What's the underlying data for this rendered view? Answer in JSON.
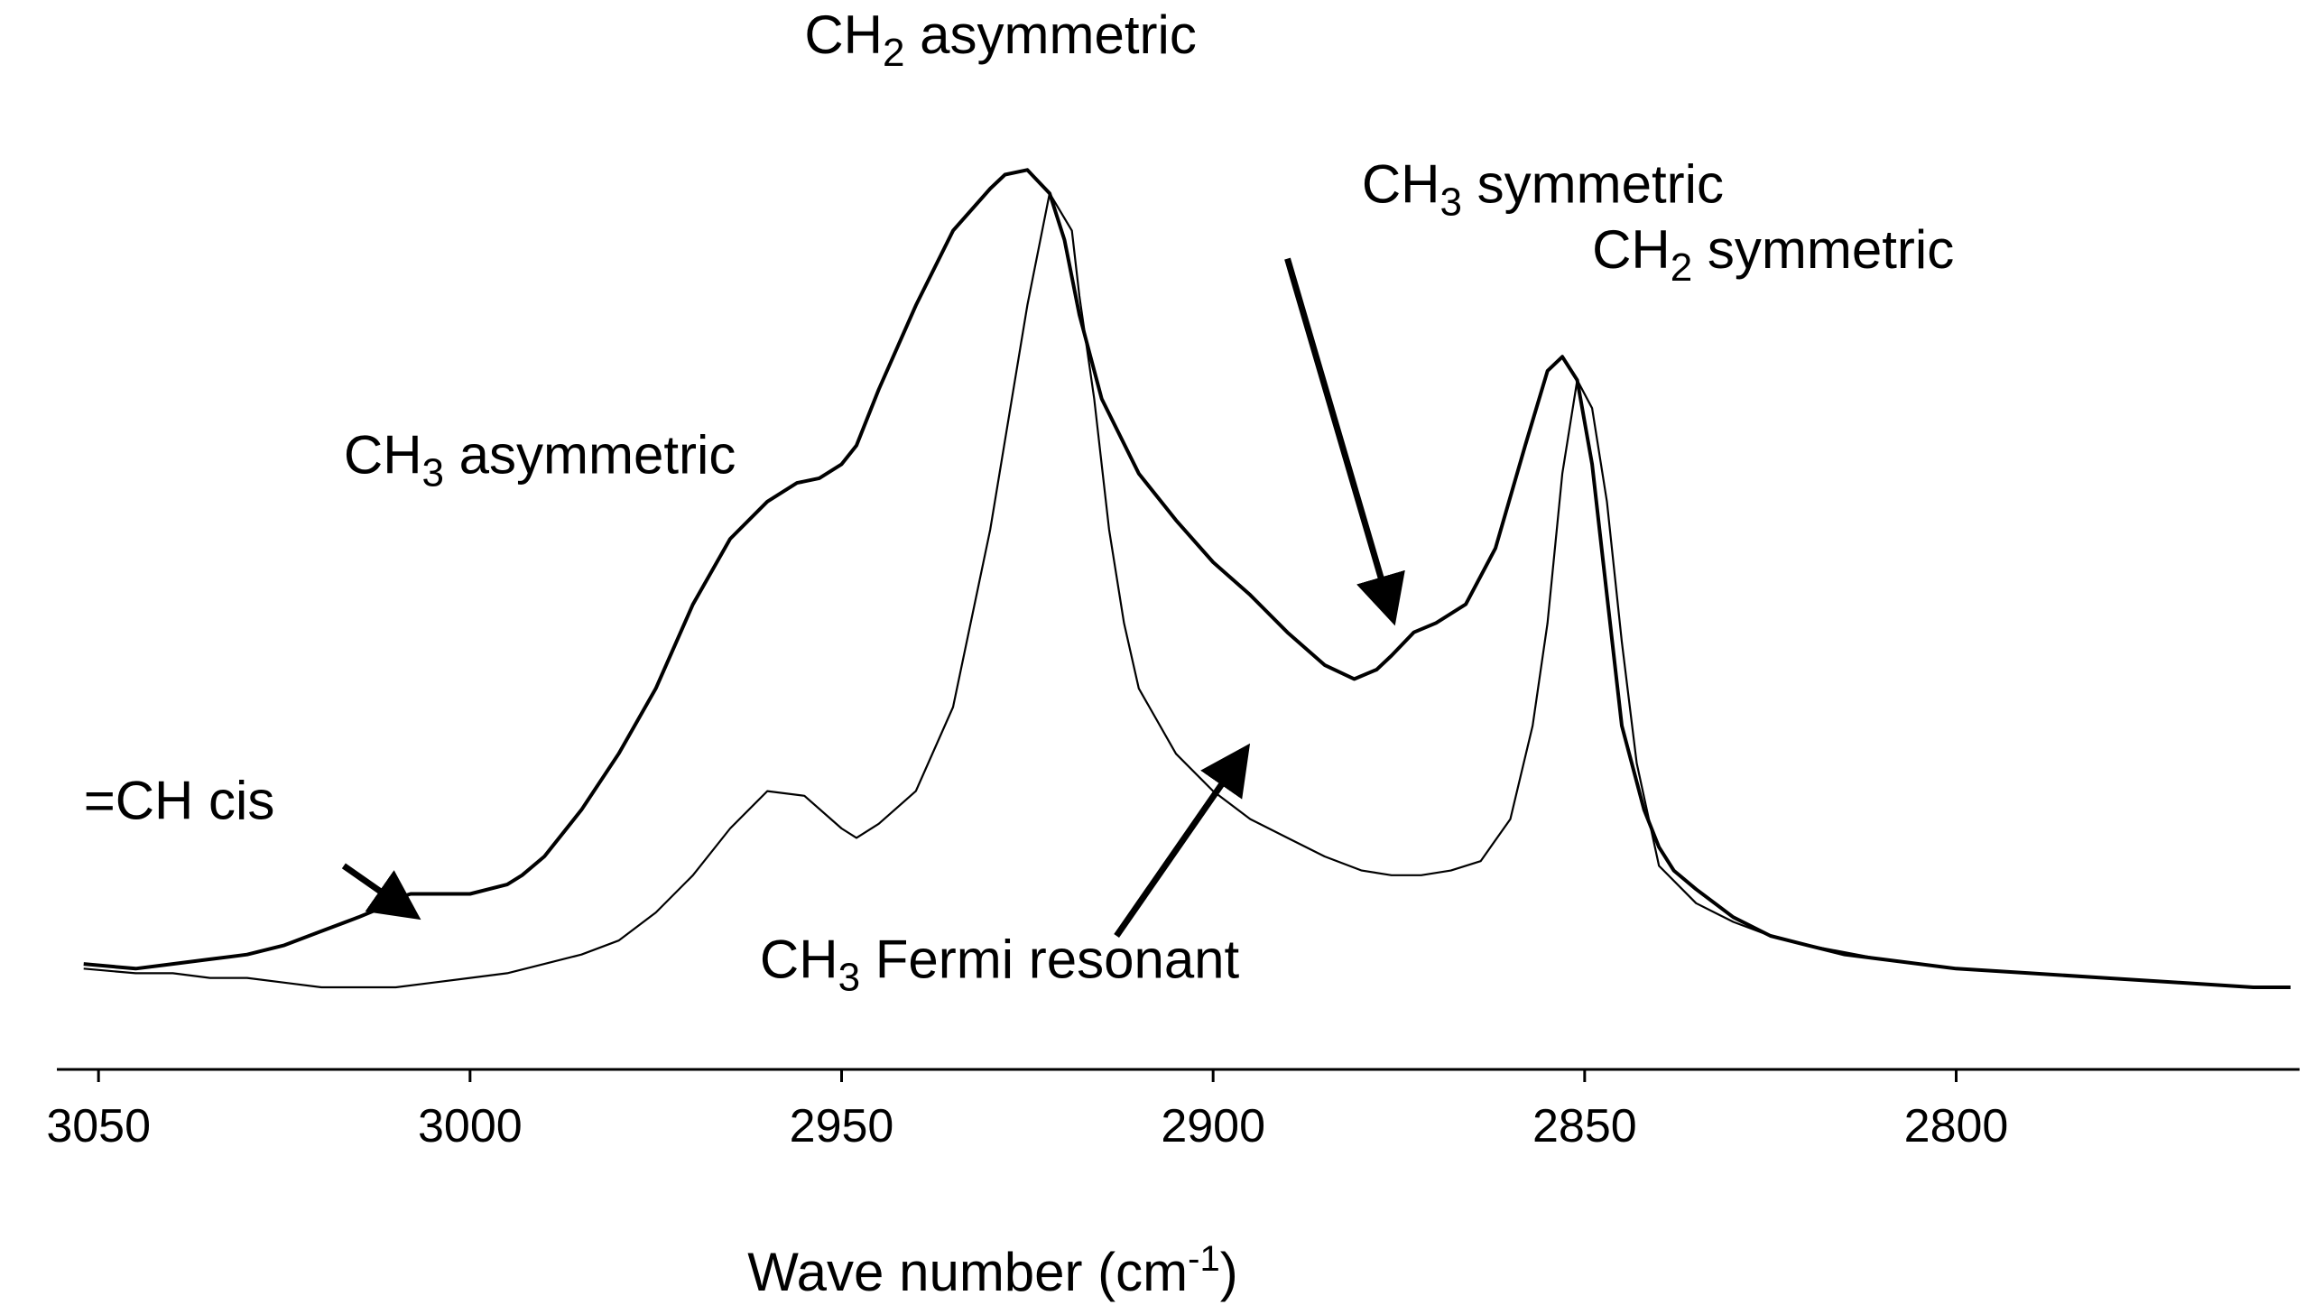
{
  "chart_data": {
    "type": "line",
    "title": "",
    "xlabel": "Wave number (cm-1)",
    "xlabel_parts": {
      "text": "Wave number (cm",
      "sup": "-1",
      "close": ")"
    },
    "ylabel": "",
    "x_reversed": true,
    "xlim": [
      3055,
      2755
    ],
    "ylim": [
      0,
      1.0
    ],
    "grid": false,
    "legend": "none",
    "x_ticks": [
      3050,
      3000,
      2950,
      2900,
      2850,
      2800
    ],
    "x_tick_labels": [
      "3050",
      "3000",
      "2950",
      "2900",
      "2850",
      "2800"
    ],
    "series": [
      {
        "style": "thick",
        "x": [
          3052,
          3045,
          3040,
          3035,
          3030,
          3025,
          3020,
          3015,
          3012,
          3010,
          3008,
          3005,
          3000,
          2995,
          2993,
          2990,
          2985,
          2980,
          2975,
          2970,
          2965,
          2960,
          2956,
          2953,
          2950,
          2948,
          2945,
          2940,
          2935,
          2930,
          2928,
          2925,
          2922,
          2920,
          2918,
          2915,
          2910,
          2905,
          2900,
          2895,
          2890,
          2885,
          2881,
          2878,
          2876,
          2873,
          2870,
          2866,
          2862,
          2858,
          2855,
          2853,
          2851,
          2849,
          2847,
          2845,
          2842,
          2840,
          2838,
          2835,
          2830,
          2825,
          2820,
          2815,
          2810,
          2800,
          2790,
          2780,
          2770,
          2760,
          2755
        ],
        "y": [
          0.055,
          0.05,
          0.055,
          0.06,
          0.065,
          0.075,
          0.09,
          0.105,
          0.115,
          0.125,
          0.13,
          0.13,
          0.13,
          0.14,
          0.15,
          0.17,
          0.22,
          0.28,
          0.35,
          0.44,
          0.51,
          0.55,
          0.57,
          0.575,
          0.59,
          0.61,
          0.67,
          0.76,
          0.84,
          0.885,
          0.9,
          0.905,
          0.88,
          0.83,
          0.75,
          0.66,
          0.58,
          0.53,
          0.485,
          0.45,
          0.41,
          0.375,
          0.36,
          0.37,
          0.385,
          0.41,
          0.42,
          0.44,
          0.5,
          0.61,
          0.69,
          0.705,
          0.68,
          0.59,
          0.45,
          0.31,
          0.22,
          0.18,
          0.155,
          0.135,
          0.105,
          0.085,
          0.075,
          0.065,
          0.06,
          0.05,
          0.045,
          0.04,
          0.035,
          0.03,
          0.03
        ]
      },
      {
        "style": "thin",
        "x": [
          3052,
          3045,
          3040,
          3035,
          3030,
          3025,
          3020,
          3015,
          3012,
          3010,
          3005,
          3000,
          2995,
          2990,
          2985,
          2980,
          2975,
          2970,
          2965,
          2960,
          2955,
          2950,
          2948,
          2945,
          2940,
          2935,
          2930,
          2925,
          2922,
          2919,
          2918,
          2916,
          2914,
          2912,
          2910,
          2905,
          2900,
          2895,
          2890,
          2885,
          2880,
          2876,
          2872,
          2868,
          2864,
          2860,
          2857,
          2855,
          2853,
          2851,
          2849,
          2847,
          2845,
          2843,
          2840,
          2835,
          2830,
          2825,
          2820,
          2810,
          2800,
          2790,
          2780,
          2770,
          2760,
          2755
        ],
        "y": [
          0.05,
          0.045,
          0.045,
          0.04,
          0.04,
          0.035,
          0.03,
          0.03,
          0.03,
          0.03,
          0.035,
          0.04,
          0.045,
          0.055,
          0.065,
          0.08,
          0.11,
          0.15,
          0.2,
          0.24,
          0.235,
          0.2,
          0.19,
          0.205,
          0.24,
          0.33,
          0.52,
          0.76,
          0.88,
          0.84,
          0.77,
          0.66,
          0.52,
          0.42,
          0.35,
          0.28,
          0.24,
          0.21,
          0.19,
          0.17,
          0.155,
          0.15,
          0.15,
          0.155,
          0.165,
          0.21,
          0.31,
          0.42,
          0.58,
          0.68,
          0.65,
          0.55,
          0.4,
          0.27,
          0.16,
          0.12,
          0.1,
          0.085,
          0.075,
          0.06,
          0.05,
          0.045,
          0.04,
          0.035,
          0.03,
          0.03
        ]
      }
    ],
    "annotations": [
      {
        "id": "ch2-asym",
        "base": "CH",
        "sub": "2",
        "rest": " asymmetric",
        "anchor_x": 2955,
        "anchor_y": 1.03
      },
      {
        "id": "ch3-sym",
        "base": "CH",
        "sub": "3",
        "rest": " symmetric",
        "anchor_x": 2880,
        "anchor_y": 0.87
      },
      {
        "id": "ch2-sym",
        "base": "CH",
        "sub": "2",
        "rest": " symmetric",
        "anchor_x": 2849,
        "anchor_y": 0.8
      },
      {
        "id": "ch3-asym",
        "base": "CH",
        "sub": "3",
        "rest": " asymmetric",
        "anchor_x": 3017,
        "anchor_y": 0.58
      },
      {
        "id": "ch-cis",
        "base": "=CH cis",
        "sub": "",
        "rest": "",
        "anchor_x": 3052,
        "anchor_y": 0.21
      },
      {
        "id": "ch3-fermi",
        "base": "CH",
        "sub": "3",
        "rest": " Fermi resonant",
        "anchor_x": 2961,
        "anchor_y": 0.04
      }
    ],
    "arrows": [
      {
        "id": "arrow-ch3-sym",
        "from": [
          2890,
          0.81
        ],
        "to": [
          2876,
          0.43
        ]
      },
      {
        "id": "arrow-ch-cis",
        "from": [
          3017,
          0.16
        ],
        "to": [
          3008,
          0.11
        ]
      },
      {
        "id": "arrow-fermi",
        "from": [
          2913,
          0.085
        ],
        "to": [
          2896,
          0.28
        ]
      }
    ]
  }
}
